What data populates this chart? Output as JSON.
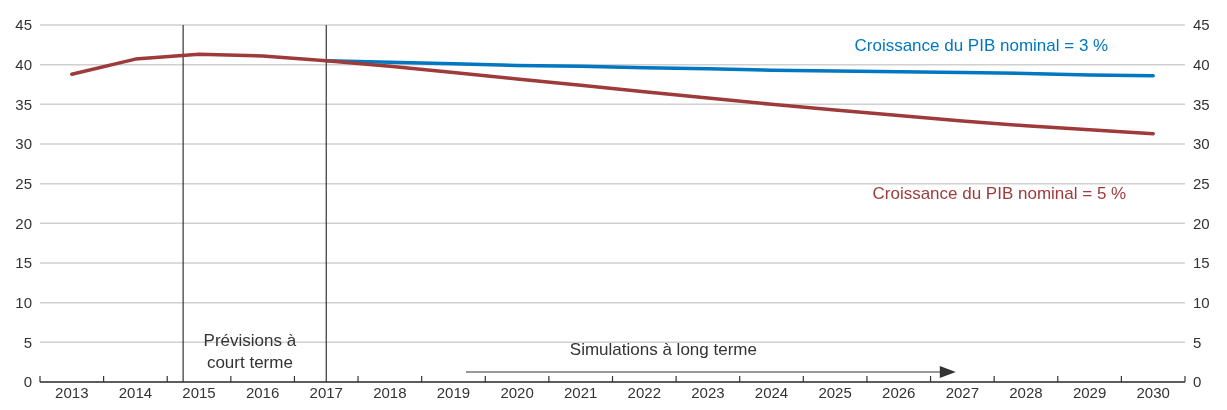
{
  "chart_data": {
    "type": "line",
    "x": [
      2013,
      2014,
      2015,
      2016,
      2017,
      2018,
      2019,
      2020,
      2021,
      2022,
      2023,
      2024,
      2025,
      2026,
      2027,
      2028,
      2029,
      2030
    ],
    "xlim": [
      2012.5,
      2030.5
    ],
    "xticks": [
      {
        "value": 2012.5,
        "label": null
      },
      2013,
      {
        "value": 2013.5,
        "label": null
      },
      2014,
      {
        "value": 2014.5,
        "label": null
      },
      2015,
      {
        "value": 2015.5,
        "label": null
      },
      2016,
      {
        "value": 2016.5,
        "label": null
      },
      2017,
      {
        "value": 2017.5,
        "label": null
      },
      2018,
      {
        "value": 2018.5,
        "label": null
      },
      2019,
      {
        "value": 2019.5,
        "label": null
      },
      2020,
      {
        "value": 2020.5,
        "label": null
      },
      2021,
      {
        "value": 2021.5,
        "label": null
      },
      2022,
      {
        "value": 2022.5,
        "label": null
      },
      2023,
      {
        "value": 2023.5,
        "label": null
      },
      2024,
      {
        "value": 2024.5,
        "label": null
      },
      2025,
      {
        "value": 2025.5,
        "label": null
      },
      2026,
      {
        "value": 2026.5,
        "label": null
      },
      2027,
      {
        "value": 2027.5,
        "label": null
      },
      2028,
      {
        "value": 2028.5,
        "label": null
      },
      2029,
      {
        "value": 2029.5,
        "label": null
      },
      2030,
      {
        "value": 2030.5,
        "label": null
      }
    ],
    "ylim": [
      0,
      45
    ],
    "yticks": [
      0,
      5,
      10,
      15,
      20,
      25,
      30,
      35,
      40,
      45
    ],
    "y2lim": [
      0,
      45
    ],
    "y2ticks": [
      0,
      5,
      10,
      15,
      20,
      25,
      30,
      35,
      40,
      45
    ],
    "series": [
      {
        "name": "Croissance du PIB nominal = 3 %",
        "color": "#0077c0",
        "values": [
          null,
          null,
          null,
          null,
          40.5,
          40.3,
          40.1,
          39.9,
          39.8,
          39.6,
          39.5,
          39.3,
          39.2,
          39.1,
          39.0,
          38.9,
          38.7,
          38.6
        ]
      },
      {
        "name": "Croissance du PIB nominal = 5 %",
        "color": "#9e3a3a",
        "values": [
          38.8,
          40.7,
          41.3,
          41.1,
          40.5,
          39.8,
          39.0,
          38.2,
          37.4,
          36.6,
          35.8,
          35.0,
          34.3,
          33.6,
          32.9,
          32.3,
          31.8,
          31.3
        ]
      }
    ],
    "ref_lines": [
      {
        "axis": "x",
        "value": 2014.75,
        "color": "#333333"
      },
      {
        "axis": "x",
        "value": 2017,
        "color": "#333333"
      }
    ],
    "annotations": [
      "Prévisions à court terme",
      "Simulations à long terme"
    ],
    "grid": "y",
    "legend": false,
    "marker": "none",
    "line_style": "solid"
  }
}
